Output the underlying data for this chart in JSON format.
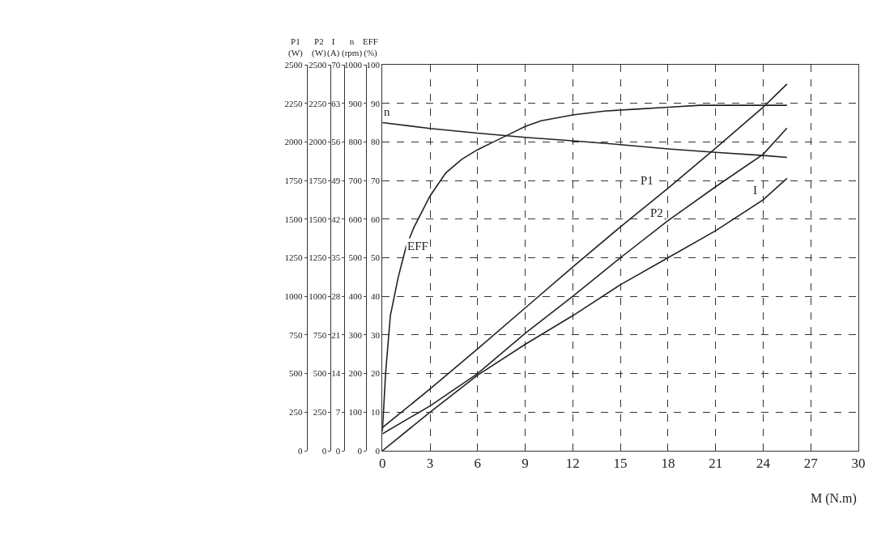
{
  "chart_data": [
    {
      "type": "line",
      "ylabel": "P1\n(W)",
      "tick_labels": "y",
      "xlim": [
        0,
        30
      ],
      "ylim": [
        0,
        2500
      ],
      "yticks": [
        0,
        250,
        500,
        750,
        1000,
        1250,
        1500,
        1750,
        2000,
        2250,
        2500
      ],
      "line_style": "solid",
      "marker": "none",
      "legend": false,
      "series": [
        {
          "name": "P1",
          "color": "#222222",
          "x": [
            0,
            3,
            6,
            9,
            12,
            15,
            18,
            21,
            24,
            25,
            25.5
          ],
          "values": [
            150,
            400,
            660,
            925,
            1190,
            1450,
            1700,
            1960,
            2225,
            2325,
            2375
          ]
        }
      ]
    },
    {
      "type": "line",
      "ylabel": "P2\n(W)",
      "tick_labels": "y",
      "xlim": [
        0,
        30
      ],
      "ylim": [
        0,
        2500
      ],
      "yticks": [
        0,
        250,
        500,
        750,
        1000,
        1250,
        1500,
        1750,
        2000,
        2250,
        2500
      ],
      "line_style": "solid",
      "marker": "none",
      "legend": false,
      "series": [
        {
          "name": "P2",
          "color": "#222222",
          "x": [
            0,
            3,
            6,
            9,
            12,
            15,
            18,
            21,
            24,
            25.5
          ],
          "values": [
            110,
            290,
            500,
            760,
            1000,
            1250,
            1490,
            1710,
            1920,
            2090
          ]
        }
      ]
    },
    {
      "type": "line",
      "ylabel": "I\n(A)",
      "tick_labels": "y",
      "xlim": [
        0,
        30
      ],
      "ylim": [
        0,
        70
      ],
      "yticks": [
        0,
        7,
        14,
        21,
        28,
        35,
        42,
        49,
        56,
        63,
        70
      ],
      "line_style": "solid",
      "marker": "none",
      "legend": false,
      "series": [
        {
          "name": "I",
          "color": "#222222",
          "x": [
            0,
            3,
            6,
            9,
            12,
            15,
            18,
            21,
            24,
            25.5
          ],
          "values": [
            0,
            7,
            13.7,
            19.3,
            24.5,
            30.1,
            35,
            39.9,
            45.5,
            49.4
          ]
        }
      ]
    },
    {
      "type": "line",
      "ylabel": "n\n(rpm)",
      "tick_labels": "y",
      "xlim": [
        0,
        30
      ],
      "ylim": [
        0,
        1000
      ],
      "yticks": [
        0,
        100,
        200,
        300,
        400,
        500,
        600,
        700,
        800,
        900,
        1000
      ],
      "line_style": "solid",
      "marker": "none",
      "legend": false,
      "series": [
        {
          "name": "n",
          "color": "#222222",
          "x": [
            0,
            3,
            6,
            9,
            12,
            15,
            18,
            21,
            24,
            25.5
          ],
          "values": [
            850,
            835,
            823,
            812,
            803,
            793,
            782,
            773,
            765,
            760
          ]
        }
      ]
    },
    {
      "type": "line",
      "xlabel": "M (N.m)",
      "ylabel": "EFF\n(%)",
      "xlim": [
        0,
        30
      ],
      "xticks": [
        0,
        3,
        6,
        9,
        12,
        15,
        18,
        21,
        24,
        27,
        30
      ],
      "ylim": [
        0,
        100
      ],
      "yticks": [
        0,
        10,
        20,
        30,
        40,
        50,
        60,
        70,
        80,
        90,
        100
      ],
      "grid": true,
      "line_style": "solid",
      "marker": "none",
      "legend": false,
      "series": [
        {
          "name": "EFF",
          "color": "#222222",
          "x": [
            0,
            0.2,
            0.5,
            1,
            1.5,
            2,
            2.5,
            3,
            4,
            5,
            6,
            7,
            8,
            9,
            10,
            12,
            14,
            16,
            18,
            20,
            22,
            24,
            25.5
          ],
          "values": [
            5,
            20,
            35,
            45,
            53,
            58,
            62,
            66,
            72,
            75.5,
            78,
            80,
            82,
            84,
            85.5,
            87,
            88,
            88.5,
            89,
            89.5,
            89.5,
            89.5,
            89.5
          ]
        }
      ]
    }
  ]
}
